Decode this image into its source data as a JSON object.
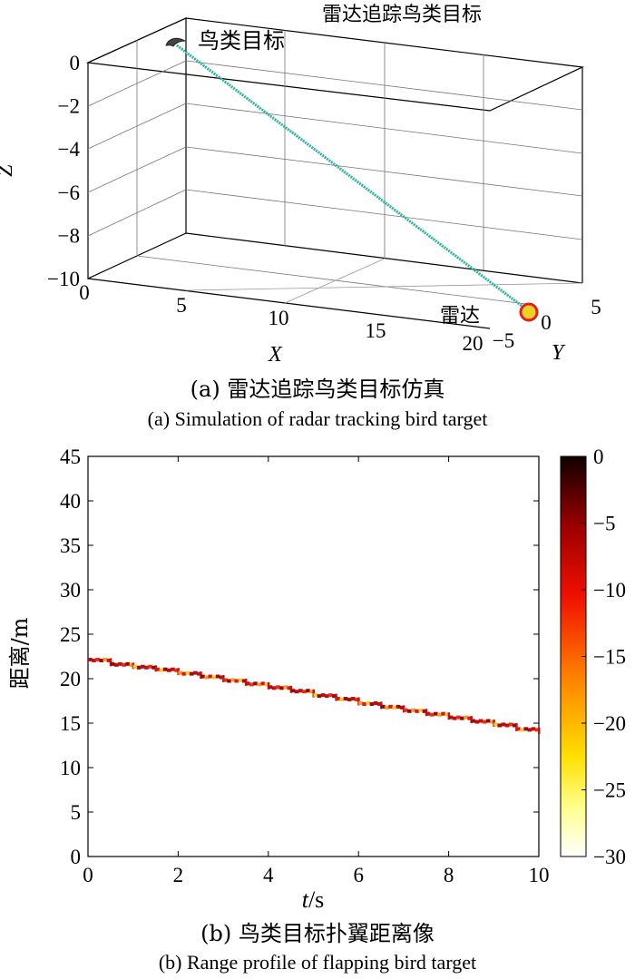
{
  "chart_data": [
    {
      "type": "line3d",
      "title": "雷达追踪鸟类目标",
      "xlabel": "X",
      "ylabel": "Y",
      "zlabel": "Z",
      "xticks": [
        "0",
        "5",
        "10",
        "15",
        "20"
      ],
      "yticks": [
        "−5",
        "0",
        "5"
      ],
      "zticks": [
        "0",
        "−2",
        "−4",
        "−6",
        "−8",
        "−10"
      ],
      "xlim": [
        0,
        20
      ],
      "ylim": [
        -5,
        5
      ],
      "zlim": [
        -10,
        0
      ],
      "series": [
        {
          "x": [
            0,
            20
          ],
          "y": [
            5,
            0
          ],
          "z": [
            0,
            -10
          ],
          "color": "#2fb3a0"
        }
      ],
      "annotations": {
        "bird": "鸟类目标",
        "radar": "雷达"
      },
      "caption_cn": "(a) 雷达追踪鸟类目标仿真",
      "caption_en": "(a) Simulation of radar tracking bird target"
    },
    {
      "type": "heatmap",
      "xlabel_italic": "t",
      "xlabel_unit": "/s",
      "ylabel": "距离/m",
      "xticks": [
        "0",
        "2",
        "4",
        "6",
        "8",
        "10"
      ],
      "yticks": [
        "0",
        "5",
        "10",
        "15",
        "20",
        "25",
        "30",
        "35",
        "40",
        "45"
      ],
      "xlim": [
        0,
        10
      ],
      "ylim": [
        0,
        45
      ],
      "colorbar": {
        "ticks": [
          "0",
          "−5",
          "−10",
          "−15",
          "−20",
          "−25",
          "−30"
        ],
        "range": [
          -30,
          0
        ]
      },
      "track_start": 22.1,
      "track_end": 14.0,
      "range_profile": {
        "t": [
          0,
          0.5,
          1,
          1.5,
          2,
          2.5,
          3,
          3.5,
          4,
          4.5,
          5,
          5.5,
          6,
          6.5,
          7,
          7.5,
          8,
          8.5,
          9,
          9.5,
          10
        ],
        "range": [
          22.1,
          21.6,
          21.3,
          21.0,
          20.6,
          20.2,
          19.8,
          19.4,
          19.0,
          18.6,
          18.1,
          17.7,
          17.2,
          16.8,
          16.4,
          16.0,
          15.6,
          15.2,
          14.8,
          14.3,
          14.0
        ]
      },
      "caption_cn": "(b) 鸟类目标扑翼距离像",
      "caption_en": "(b) Range profile of flapping bird target"
    }
  ],
  "colors": {
    "track": "#2fb3a0",
    "radar_marker": "#f0d020",
    "radar_ring": "#e02020"
  }
}
